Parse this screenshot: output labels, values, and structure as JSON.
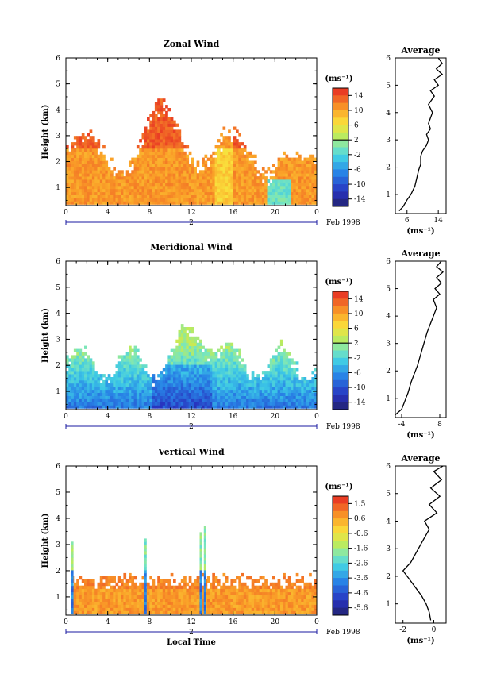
{
  "chart_data": [
    {
      "type": "heatmap",
      "title": "Zonal Wind",
      "ylabel": "Height (km)",
      "x_ticks": [
        "0",
        "4",
        "8",
        "12",
        "16",
        "20",
        "0"
      ],
      "y_ticks": [
        "1",
        "2",
        "3",
        "4",
        "5",
        "6"
      ],
      "xlim": [
        0,
        24
      ],
      "ylim": [
        0.3,
        6
      ],
      "date_label": "2",
      "month_label": "Feb 1998",
      "colorbar": {
        "unit": "(ms⁻¹)",
        "ticks": [
          "14",
          "10",
          "6",
          "2",
          "-2",
          "-6",
          "-10",
          "-14"
        ],
        "range": [
          -16,
          16
        ],
        "zero_line": 2
      },
      "profile": {
        "title": "Average",
        "xlabel": "(ms⁻¹)",
        "x_ticks": [
          "6",
          "14"
        ],
        "xlim": [
          3,
          16
        ],
        "points": [
          [
            4,
            0.4
          ],
          [
            5,
            0.55
          ],
          [
            6,
            0.8
          ],
          [
            7,
            1.0
          ],
          [
            8,
            1.3
          ],
          [
            8.5,
            1.6
          ],
          [
            9,
            1.9
          ],
          [
            9.5,
            2.1
          ],
          [
            9.5,
            2.4
          ],
          [
            10,
            2.6
          ],
          [
            11,
            2.8
          ],
          [
            11.5,
            3.0
          ],
          [
            11,
            3.2
          ],
          [
            12,
            3.4
          ],
          [
            11.5,
            3.6
          ],
          [
            12,
            3.8
          ],
          [
            12.5,
            4.0
          ],
          [
            11.5,
            4.3
          ],
          [
            13,
            4.6
          ],
          [
            12,
            4.8
          ],
          [
            14,
            5.0
          ],
          [
            13,
            5.2
          ],
          [
            15,
            5.4
          ],
          [
            13.5,
            5.6
          ],
          [
            15,
            5.8
          ],
          [
            14,
            6.0
          ]
        ]
      }
    },
    {
      "type": "heatmap",
      "title": "Meridional Wind",
      "ylabel": "Height (km)",
      "x_ticks": [
        "0",
        "4",
        "8",
        "12",
        "16",
        "20",
        "0"
      ],
      "y_ticks": [
        "1",
        "2",
        "3",
        "4",
        "5",
        "6"
      ],
      "xlim": [
        0,
        24
      ],
      "ylim": [
        0.3,
        6
      ],
      "date_label": "2",
      "month_label": "Feb 1998",
      "colorbar": {
        "unit": "(ms⁻¹)",
        "ticks": [
          "14",
          "10",
          "6",
          "2",
          "-2",
          "-6",
          "-10",
          "-14"
        ],
        "range": [
          -16,
          16
        ],
        "zero_line": 2
      },
      "profile": {
        "title": "Average",
        "xlabel": "(ms⁻¹)",
        "x_ticks": [
          "-4",
          "8"
        ],
        "xlim": [
          -6,
          10
        ],
        "points": [
          [
            -6,
            0.4
          ],
          [
            -4,
            0.6
          ],
          [
            -3,
            0.9
          ],
          [
            -2,
            1.2
          ],
          [
            -1,
            1.6
          ],
          [
            0,
            1.9
          ],
          [
            1,
            2.2
          ],
          [
            2,
            2.6
          ],
          [
            3,
            3.0
          ],
          [
            4,
            3.4
          ],
          [
            5,
            3.7
          ],
          [
            6,
            4.0
          ],
          [
            7,
            4.3
          ],
          [
            6,
            4.6
          ],
          [
            8,
            4.8
          ],
          [
            6.5,
            5.0
          ],
          [
            8.5,
            5.2
          ],
          [
            7,
            5.4
          ],
          [
            9,
            5.6
          ],
          [
            7,
            5.8
          ],
          [
            8.5,
            6.0
          ]
        ]
      }
    },
    {
      "type": "heatmap",
      "title": "Vertical Wind",
      "ylabel": "Height (km)",
      "xlabel": "Local Time",
      "x_ticks": [
        "0",
        "4",
        "8",
        "12",
        "16",
        "20",
        "0"
      ],
      "y_ticks": [
        "1",
        "2",
        "3",
        "4",
        "5",
        "6"
      ],
      "xlim": [
        0,
        24
      ],
      "ylim": [
        0.3,
        6
      ],
      "date_label": "2",
      "month_label": "Feb 1998",
      "colorbar": {
        "unit": "(ms⁻¹)",
        "ticks": [
          "1.5",
          "0.6",
          "-0.6",
          "-1.6",
          "-2.6",
          "-3.6",
          "-4.6",
          "-5.6"
        ],
        "range": [
          -6,
          2
        ]
      },
      "profile": {
        "title": "Average",
        "xlabel": "(ms⁻¹)",
        "x_ticks": [
          "-2",
          "0"
        ],
        "xlim": [
          -2.5,
          0.8
        ],
        "points": [
          [
            -0.2,
            0.4
          ],
          [
            -0.3,
            0.7
          ],
          [
            -0.5,
            1.0
          ],
          [
            -0.8,
            1.3
          ],
          [
            -1.2,
            1.6
          ],
          [
            -1.6,
            1.9
          ],
          [
            -2.0,
            2.2
          ],
          [
            -1.5,
            2.5
          ],
          [
            -1.2,
            2.8
          ],
          [
            -0.9,
            3.1
          ],
          [
            -0.6,
            3.4
          ],
          [
            -0.3,
            3.7
          ],
          [
            -0.6,
            4.0
          ],
          [
            0.2,
            4.3
          ],
          [
            -0.3,
            4.6
          ],
          [
            0.4,
            4.9
          ],
          [
            -0.2,
            5.2
          ],
          [
            0.5,
            5.5
          ],
          [
            0.0,
            5.8
          ],
          [
            0.6,
            6.0
          ]
        ]
      }
    }
  ]
}
